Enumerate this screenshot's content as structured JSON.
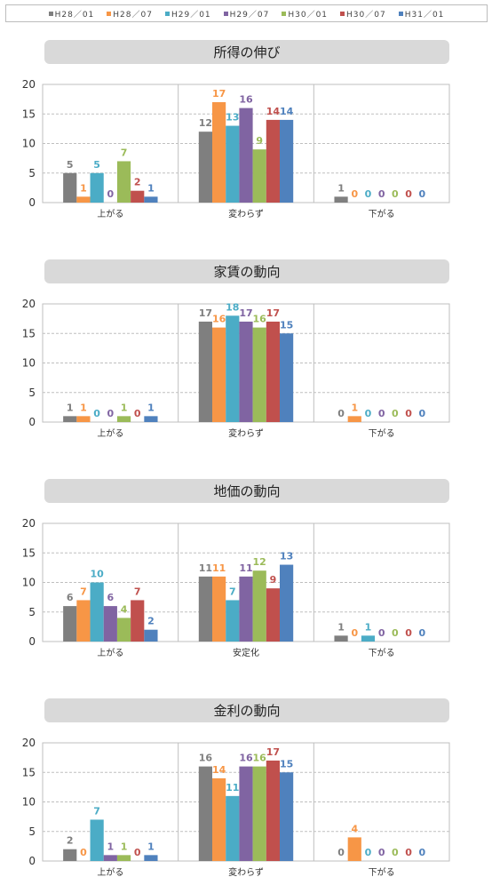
{
  "legend": {
    "series": [
      {
        "name": "H28／01",
        "color": "#7f7f7f"
      },
      {
        "name": "H28／07",
        "color": "#f79646"
      },
      {
        "name": "H29／01",
        "color": "#4bacc6"
      },
      {
        "name": "H29／07",
        "color": "#8064a2"
      },
      {
        "name": "H30／01",
        "color": "#9bbb59"
      },
      {
        "name": "H30／07",
        "color": "#c0504d"
      },
      {
        "name": "H31／01",
        "color": "#4f81bd"
      }
    ]
  },
  "chart_data": [
    {
      "type": "bar",
      "title": "所得の伸び",
      "categories": [
        "上がる",
        "変わらず",
        "下がる"
      ],
      "ylim": [
        0,
        20
      ],
      "yticks": [
        0,
        5,
        10,
        15,
        20
      ],
      "grid": true,
      "series": [
        {
          "name": "H28／01",
          "values": [
            5,
            12,
            1
          ]
        },
        {
          "name": "H28／07",
          "values": [
            1,
            17,
            0
          ]
        },
        {
          "name": "H29／01",
          "values": [
            5,
            13,
            0
          ]
        },
        {
          "name": "H29／07",
          "values": [
            0,
            16,
            0
          ]
        },
        {
          "name": "H30／01",
          "values": [
            7,
            9,
            0
          ]
        },
        {
          "name": "H30／07",
          "values": [
            2,
            14,
            0
          ]
        },
        {
          "name": "H31／01",
          "values": [
            1,
            14,
            0
          ]
        }
      ]
    },
    {
      "type": "bar",
      "title": "家賃の動向",
      "categories": [
        "上がる",
        "変わらず",
        "下がる"
      ],
      "ylim": [
        0,
        20
      ],
      "yticks": [
        0,
        5,
        10,
        15,
        20
      ],
      "grid": true,
      "series": [
        {
          "name": "H28／01",
          "values": [
            1,
            17,
            0
          ]
        },
        {
          "name": "H28／07",
          "values": [
            1,
            16,
            1
          ]
        },
        {
          "name": "H29／01",
          "values": [
            0,
            18,
            0
          ]
        },
        {
          "name": "H29／07",
          "values": [
            0,
            17,
            0
          ]
        },
        {
          "name": "H30／01",
          "values": [
            1,
            16,
            0
          ]
        },
        {
          "name": "H30／07",
          "values": [
            0,
            17,
            0
          ]
        },
        {
          "name": "H31／01",
          "values": [
            1,
            15,
            0
          ]
        }
      ]
    },
    {
      "type": "bar",
      "title": "地価の動向",
      "categories": [
        "上がる",
        "安定化",
        "下がる"
      ],
      "ylim": [
        0,
        20
      ],
      "yticks": [
        0,
        5,
        10,
        15,
        20
      ],
      "grid": true,
      "series": [
        {
          "name": "H28／01",
          "values": [
            6,
            11,
            1
          ]
        },
        {
          "name": "H28／07",
          "values": [
            7,
            11,
            0
          ]
        },
        {
          "name": "H29／01",
          "values": [
            10,
            7,
            1
          ]
        },
        {
          "name": "H29／07",
          "values": [
            6,
            11,
            0
          ]
        },
        {
          "name": "H30／01",
          "values": [
            4,
            12,
            0
          ]
        },
        {
          "name": "H30／07",
          "values": [
            7,
            9,
            0
          ]
        },
        {
          "name": "H31／01",
          "values": [
            2,
            13,
            0
          ]
        }
      ]
    },
    {
      "type": "bar",
      "title": "金利の動向",
      "categories": [
        "上がる",
        "変わらず",
        "下がる"
      ],
      "ylim": [
        0,
        20
      ],
      "yticks": [
        0,
        5,
        10,
        15,
        20
      ],
      "grid": true,
      "series": [
        {
          "name": "H28／01",
          "values": [
            2,
            16,
            0
          ]
        },
        {
          "name": "H28／07",
          "values": [
            0,
            14,
            4
          ]
        },
        {
          "name": "H29／01",
          "values": [
            7,
            11,
            0
          ]
        },
        {
          "name": "H29／07",
          "values": [
            1,
            16,
            0
          ]
        },
        {
          "name": "H30／01",
          "values": [
            1,
            16,
            0
          ]
        },
        {
          "name": "H30／07",
          "values": [
            0,
            17,
            0
          ]
        },
        {
          "name": "H31／01",
          "values": [
            1,
            15,
            0
          ]
        }
      ]
    }
  ]
}
